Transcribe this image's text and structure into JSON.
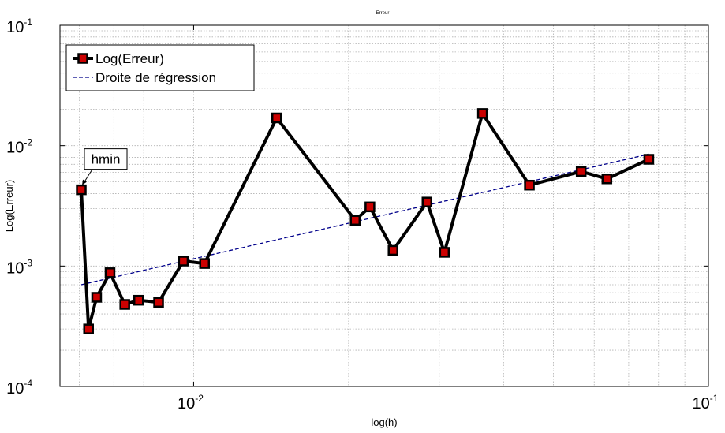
{
  "chart_data": {
    "type": "line",
    "title": "Erreur",
    "xlabel": "log(h)",
    "ylabel": "Log(Erreur)",
    "xscale": "log",
    "yscale": "log",
    "xlim": [
      0.0055,
      0.1
    ],
    "ylim": [
      0.0001,
      0.1
    ],
    "grid": true,
    "legend_position": "top-left",
    "x_ticks": [
      {
        "value": 0.01,
        "base": "10",
        "exp": "-2"
      },
      {
        "value": 0.1,
        "base": "10",
        "exp": "-1"
      }
    ],
    "y_ticks": [
      {
        "value": 0.0001,
        "base": "10",
        "exp": "-4"
      },
      {
        "value": 0.001,
        "base": "10",
        "exp": "-3"
      },
      {
        "value": 0.01,
        "base": "10",
        "exp": "-2"
      },
      {
        "value": 0.1,
        "base": "10",
        "exp": "-1"
      }
    ],
    "series": [
      {
        "name": "Log(Erreur)",
        "style": "solid-markers",
        "color": "#000000",
        "marker_color": "#cc0000",
        "x": [
          0.00605,
          0.00625,
          0.00648,
          0.00688,
          0.00735,
          0.00782,
          0.00855,
          0.00955,
          0.0105,
          0.0145,
          0.0206,
          0.022,
          0.0244,
          0.0284,
          0.0307,
          0.0364,
          0.0449,
          0.0566,
          0.0635,
          0.0766
        ],
        "y": [
          0.0043,
          0.0003,
          0.00055,
          0.00088,
          0.00048,
          0.00052,
          0.0005,
          0.0011,
          0.00105,
          0.017,
          0.0024,
          0.0031,
          0.00135,
          0.0034,
          0.0013,
          0.0185,
          0.0047,
          0.0061,
          0.0053,
          0.0077
        ]
      },
      {
        "name": "Droite de régression",
        "style": "dashed",
        "color": "#00008b",
        "x": [
          0.00605,
          0.0766
        ],
        "y": [
          0.0007,
          0.0085
        ]
      }
    ],
    "annotations": [
      {
        "text": "hmin",
        "x": 0.00605,
        "y": 0.0043
      }
    ]
  }
}
